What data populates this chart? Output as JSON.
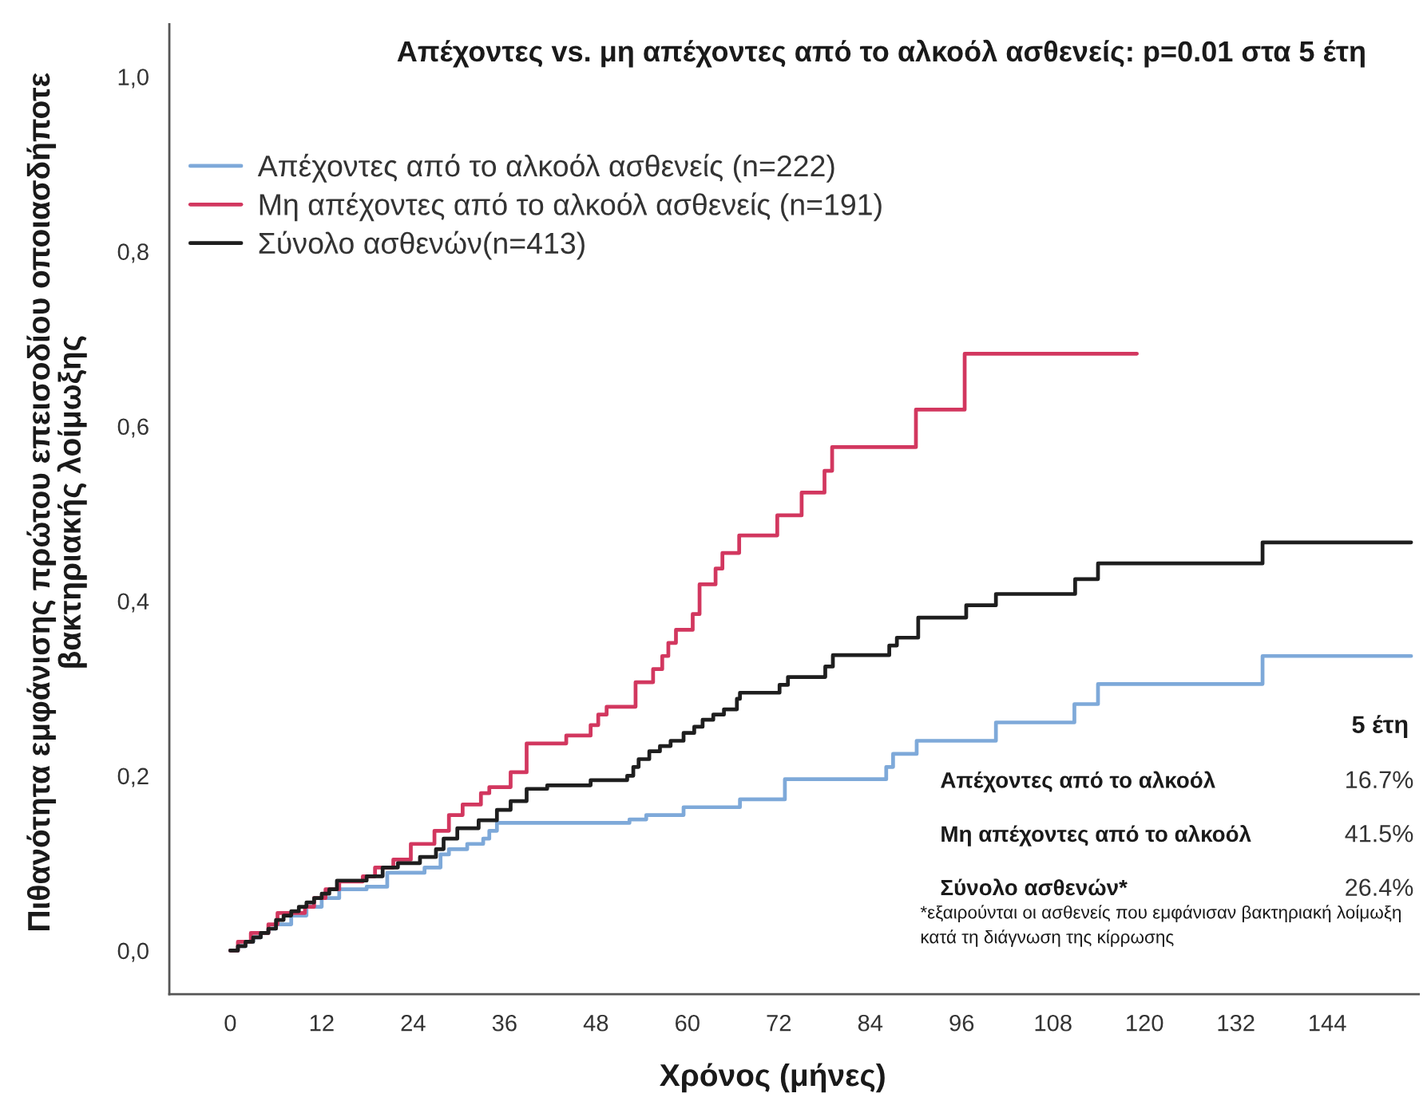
{
  "chart_data": {
    "type": "step",
    "title": "Απέχοντες vs. μη απέχοντες από το αλκοόλ ασθενείς: p=0.01 στα 5 έτη",
    "xlabel": "Χρόνος (μήνες)",
    "ylabel": "Πιθανότητα εμφάνισης πρώτου επεισοδίου οποιασδήποτε\nβακτηριακής λοίμωξης",
    "xlim": [
      -8,
      156
    ],
    "xticks": [
      0,
      12,
      24,
      36,
      48,
      60,
      72,
      84,
      96,
      108,
      120,
      132,
      144
    ],
    "ylim": [
      -0.05,
      1.06
    ],
    "yticks": [
      {
        "value": 0,
        "label": "0,0"
      },
      {
        "value": 0.2,
        "label": "0,2"
      },
      {
        "value": 0.4,
        "label": "0,4"
      },
      {
        "value": 0.6,
        "label": "0,6"
      },
      {
        "value": 0.8,
        "label": "0,8"
      },
      {
        "value": 1.0,
        "label": "1,0"
      }
    ],
    "legend": "top left",
    "line_style": "solid",
    "series": [
      {
        "name": "Απέχοντες από το αλκοόλ ασθενείς (n=222)",
        "color": "#7ea9d9",
        "x": [
          0,
          1,
          2,
          3,
          4,
          5,
          6,
          8,
          10,
          12,
          14.3,
          17.9,
          20.6,
          25.5,
          27.6,
          28.7,
          31.1,
          33.2,
          34,
          35,
          52.4,
          54.6,
          59.5,
          66.9,
          72.8,
          86.1,
          87,
          90.1,
          100.5,
          110.8,
          113.9,
          135.5,
          155
        ],
        "values": [
          0,
          0.005,
          0.01,
          0.015,
          0.02,
          0.025,
          0.03,
          0.04,
          0.05,
          0.06,
          0.07,
          0.073,
          0.089,
          0.095,
          0.11,
          0.116,
          0.122,
          0.128,
          0.137,
          0.146,
          0.15,
          0.155,
          0.164,
          0.173,
          0.196,
          0.21,
          0.225,
          0.24,
          0.261,
          0.282,
          0.305,
          0.337,
          0.337
        ]
      },
      {
        "name": "Μη απέχοντες από το αλκοόλ ασθενείς (n=191)",
        "color": "#d2375f",
        "x": [
          0,
          1,
          2.7,
          5,
          6.2,
          9.8,
          11,
          12.5,
          14.3,
          17.4,
          19,
          21.4,
          23.7,
          26.8,
          28.7,
          30.5,
          32.9,
          34,
          36.8,
          38.9,
          44.1,
          47.3,
          48.3,
          49.4,
          53.2,
          55.5,
          56.7,
          57.5,
          58.5,
          60.7,
          61.6,
          63.7,
          64.6,
          66.8,
          71.8,
          75,
          78,
          79,
          90,
          96.4,
          119
        ],
        "values": [
          0,
          0.01,
          0.02,
          0.03,
          0.043,
          0.05,
          0.06,
          0.07,
          0.079,
          0.085,
          0.095,
          0.104,
          0.122,
          0.137,
          0.155,
          0.167,
          0.18,
          0.187,
          0.204,
          0.237,
          0.246,
          0.258,
          0.27,
          0.279,
          0.307,
          0.322,
          0.337,
          0.352,
          0.367,
          0.385,
          0.419,
          0.437,
          0.455,
          0.475,
          0.498,
          0.524,
          0.549,
          0.576,
          0.619,
          0.683,
          0.683
        ]
      },
      {
        "name": "Σύνολο ασθενών(n=413)",
        "color": "#1e1e1e",
        "x": [
          0,
          1,
          2,
          3,
          4,
          5,
          6,
          7,
          8,
          9,
          10,
          11,
          12,
          13,
          14,
          17.9,
          20,
          22,
          24.9,
          27,
          28,
          29.8,
          32.6,
          35,
          36.8,
          38.9,
          41.6,
          47.3,
          52.1,
          52.9,
          53.6,
          55,
          56.4,
          57.8,
          59.5,
          60.9,
          62,
          63.4,
          64.8,
          66.5,
          66.9,
          72.1,
          73.2,
          78.1,
          79.1,
          86.5,
          87.5,
          90.3,
          96.6,
          100.5,
          110.9,
          113.9,
          135.5,
          155
        ],
        "values": [
          0,
          0.005,
          0.01,
          0.015,
          0.02,
          0.025,
          0.035,
          0.04,
          0.045,
          0.05,
          0.055,
          0.06,
          0.065,
          0.07,
          0.08,
          0.085,
          0.095,
          0.1,
          0.107,
          0.116,
          0.128,
          0.14,
          0.149,
          0.161,
          0.171,
          0.185,
          0.189,
          0.195,
          0.2,
          0.21,
          0.219,
          0.228,
          0.234,
          0.24,
          0.249,
          0.256,
          0.264,
          0.27,
          0.276,
          0.288,
          0.295,
          0.304,
          0.313,
          0.325,
          0.338,
          0.349,
          0.358,
          0.381,
          0.395,
          0.408,
          0.425,
          0.443,
          0.467,
          0.467
        ]
      }
    ],
    "annotations": [
      "5 έτη",
      "Απέχοντες από το αλκοόλ",
      "16.7%",
      "Μη απέχοντες από το αλκοόλ",
      "41.5%",
      "Σύνολο ασθενών*",
      "26.4%",
      "*εξαιρούνται οι ασθενείς που εμφάνισαν βακτηριακή λοίμωξη\nκατά τη διάγνωση της κίρρωσης"
    ]
  }
}
